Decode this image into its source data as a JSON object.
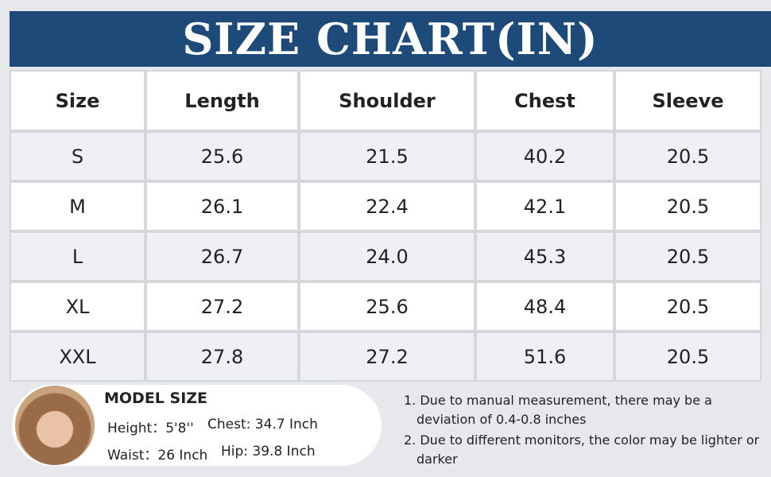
{
  "header": {
    "title": "SIZE CHART(IN)"
  },
  "table": {
    "columns": [
      "Size",
      "Length",
      "Shoulder",
      "Chest",
      "Sleeve"
    ],
    "rows": [
      [
        "S",
        "25.6",
        "21.5",
        "40.2",
        "20.5"
      ],
      [
        "M",
        "26.1",
        "22.4",
        "42.1",
        "20.5"
      ],
      [
        "L",
        "26.7",
        "24.0",
        "45.3",
        "20.5"
      ],
      [
        "XL",
        "27.2",
        "25.6",
        "48.4",
        "20.5"
      ],
      [
        "XXL",
        "27.8",
        "27.2",
        "51.6",
        "20.5"
      ]
    ]
  },
  "model": {
    "heading": "MODEL SIZE",
    "height": "Height：5'8''",
    "chest": "Chest: 34.7 Inch",
    "waist": "Waist：26 Inch",
    "hip": "Hip: 39.8 Inch"
  },
  "notes": [
    "1. Due to manual measurement, there may be a deviation of 0.4-0.8 inches",
    "2. Due to different monitors, the color may be lighter or darker"
  ]
}
